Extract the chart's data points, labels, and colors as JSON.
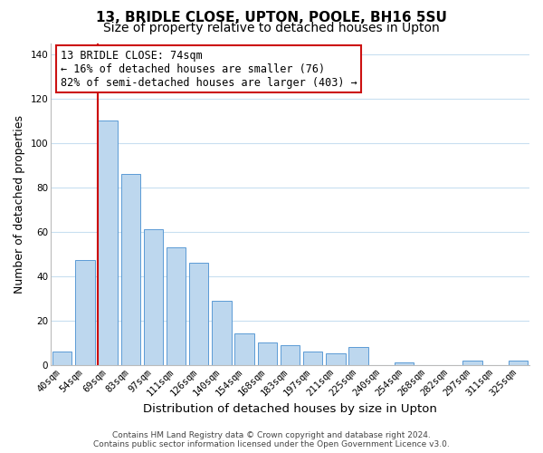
{
  "title": "13, BRIDLE CLOSE, UPTON, POOLE, BH16 5SU",
  "subtitle": "Size of property relative to detached houses in Upton",
  "xlabel": "Distribution of detached houses by size in Upton",
  "ylabel": "Number of detached properties",
  "bar_labels": [
    "40sqm",
    "54sqm",
    "69sqm",
    "83sqm",
    "97sqm",
    "111sqm",
    "126sqm",
    "140sqm",
    "154sqm",
    "168sqm",
    "183sqm",
    "197sqm",
    "211sqm",
    "225sqm",
    "240sqm",
    "254sqm",
    "268sqm",
    "282sqm",
    "297sqm",
    "311sqm",
    "325sqm"
  ],
  "bar_values": [
    6,
    47,
    110,
    86,
    61,
    53,
    46,
    29,
    14,
    10,
    9,
    6,
    5,
    8,
    0,
    1,
    0,
    0,
    2,
    0,
    2
  ],
  "bar_color": "#bdd7ee",
  "bar_edge_color": "#5b9bd5",
  "vline_color": "#cc0000",
  "vline_x": 2.0,
  "ylim": [
    0,
    145
  ],
  "yticks": [
    0,
    20,
    40,
    60,
    80,
    100,
    120,
    140
  ],
  "annotation_title": "13 BRIDLE CLOSE: 74sqm",
  "annotation_line1": "← 16% of detached houses are smaller (76)",
  "annotation_line2": "82% of semi-detached houses are larger (403) →",
  "footer_line1": "Contains HM Land Registry data © Crown copyright and database right 2024.",
  "footer_line2": "Contains public sector information licensed under the Open Government Licence v3.0.",
  "bg_color": "#ffffff",
  "grid_color": "#c8dff0",
  "title_fontsize": 11,
  "subtitle_fontsize": 10,
  "tick_fontsize": 7.5,
  "axis_label_fontsize": 9.5,
  "ylabel_fontsize": 9,
  "footer_fontsize": 6.5
}
